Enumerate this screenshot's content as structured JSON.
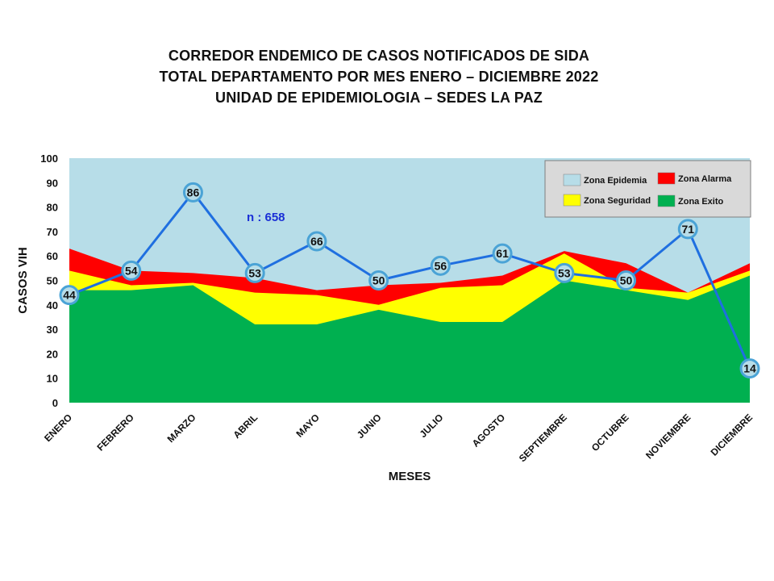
{
  "title_lines": [
    "CORREDOR ENDEMICO  DE CASOS NOTIFICADOS  DE SIDA",
    "TOTAL DEPARTAMENTO  POR MES ENERO – DICIEMBRE  2022",
    "UNIDAD  DE EPIDEMIOLOGIA  – SEDES LA PAZ"
  ],
  "chart_data": {
    "type": "area",
    "title": "CORREDOR ENDEMICO  DE CASOS NOTIFICADOS  DE SIDA TOTAL DEPARTAMENTO  POR MES ENERO – DICIEMBRE  2022 UNIDAD  DE EPIDEMIOLOGIA  – SEDES LA PAZ",
    "xlabel": "MESES",
    "ylabel": "CASOS VIH",
    "ylim": [
      0,
      100
    ],
    "yticks": [
      0,
      10,
      20,
      30,
      40,
      50,
      60,
      70,
      80,
      90,
      100
    ],
    "categories": [
      "ENERO",
      "FEBRERO",
      "MARZO",
      "ABRIL",
      "MAYO",
      "JUNIO",
      "JULIO",
      "AGOSTO",
      "SEPTIEMBRE",
      "OCTUBRE",
      "NOVIEMBRE",
      "DICIEMBRE"
    ],
    "grid": false,
    "legend_position": "top-right",
    "annotation": "n : 658",
    "zones": [
      {
        "name": "Zona Epidemia",
        "color": "#b7dde8",
        "upper": [
          100,
          100,
          100,
          100,
          100,
          100,
          100,
          100,
          100,
          100,
          100,
          100
        ]
      },
      {
        "name": "Zona Alarma",
        "color": "#ff0000",
        "upper": [
          63,
          54,
          53,
          51,
          46,
          48,
          49,
          52,
          62,
          57,
          45,
          57
        ]
      },
      {
        "name": "Zona Seguridad",
        "color": "#ffff00",
        "upper": [
          54,
          48,
          49,
          45,
          44,
          40,
          47,
          48,
          61,
          47,
          45,
          54
        ]
      },
      {
        "name": "Zona Exito",
        "color": "#00b050",
        "upper": [
          46,
          46,
          48,
          32,
          32,
          38,
          33,
          33,
          50,
          46,
          42,
          52
        ]
      }
    ],
    "series": [
      {
        "name": "",
        "color": "#1f6fe0",
        "values": [
          44,
          54,
          86,
          53,
          66,
          50,
          56,
          61,
          53,
          50,
          71,
          14
        ]
      }
    ]
  }
}
